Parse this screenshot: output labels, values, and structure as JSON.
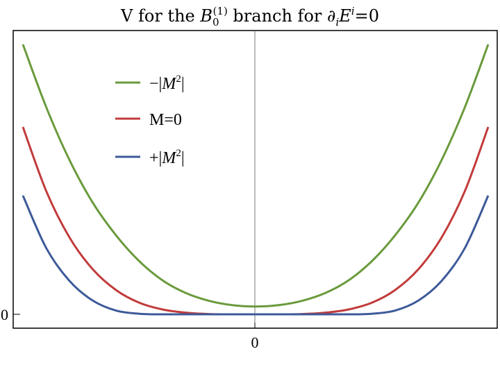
{
  "chart_data": {
    "type": "line",
    "title": {
      "prefix": "V for the ",
      "b_symbol": "B",
      "b_sub": "0",
      "b_sup": "(1)",
      "middle": " branch for ",
      "partial": "∂",
      "partial_sub": "i",
      "e_symbol": "E",
      "e_sup": "i",
      "suffix": "=0"
    },
    "xlabel": "",
    "ylabel": "",
    "x_ticks": [
      "0"
    ],
    "y_ticks": [
      "0"
    ],
    "xlim": [
      -1,
      1
    ],
    "ylim": [
      0,
      1
    ],
    "grid": false,
    "legend_position": "upper-left",
    "series": [
      {
        "name": "−|M²|",
        "legend_main": "−|",
        "legend_var": "M",
        "legend_sup": "2",
        "legend_end": "|",
        "color": "#6a9a3c",
        "x": [
          -1,
          -0.9,
          -0.8,
          -0.7,
          -0.6,
          -0.5,
          -0.4,
          -0.3,
          -0.2,
          -0.1,
          0,
          0.1,
          0.2,
          0.3,
          0.4,
          0.5,
          0.6,
          0.7,
          0.8,
          0.9,
          1
        ],
        "y": [
          1.0,
          0.768,
          0.572,
          0.414,
          0.293,
          0.197,
          0.126,
          0.079,
          0.05,
          0.034,
          0.029,
          0.034,
          0.05,
          0.079,
          0.126,
          0.197,
          0.293,
          0.414,
          0.572,
          0.768,
          1.0
        ]
      },
      {
        "name": "M=0",
        "legend_main": "M=0",
        "legend_var": "",
        "legend_sup": "",
        "legend_end": "",
        "color": "#c23b3b",
        "x": [
          -1,
          -0.9,
          -0.8,
          -0.7,
          -0.6,
          -0.5,
          -0.4,
          -0.3,
          -0.2,
          -0.1,
          0,
          0.1,
          0.2,
          0.3,
          0.4,
          0.5,
          0.6,
          0.7,
          0.8,
          0.9,
          1
        ],
        "y": [
          0.694,
          0.457,
          0.285,
          0.167,
          0.09,
          0.043,
          0.018,
          0.006,
          0.001,
          0.0,
          0.0,
          0.0,
          0.001,
          0.006,
          0.018,
          0.043,
          0.09,
          0.167,
          0.285,
          0.457,
          0.694
        ]
      },
      {
        "name": "+|M²|",
        "legend_main": "+|",
        "legend_var": "M",
        "legend_sup": "2",
        "legend_end": "|",
        "color": "#3d5a99",
        "x": [
          -1,
          -0.9,
          -0.8,
          -0.7,
          -0.6,
          -0.5,
          -0.4,
          -0.3,
          -0.2,
          -0.1,
          0,
          0.1,
          0.2,
          0.3,
          0.4,
          0.5,
          0.6,
          0.7,
          0.8,
          0.9,
          1
        ],
        "y": [
          0.44,
          0.246,
          0.124,
          0.051,
          0.014,
          0.002,
          0.0,
          0.0,
          0.0,
          0.0,
          0.0,
          0.0,
          0.0,
          0.0,
          0.0,
          0.002,
          0.014,
          0.051,
          0.124,
          0.246,
          0.44
        ]
      }
    ]
  }
}
